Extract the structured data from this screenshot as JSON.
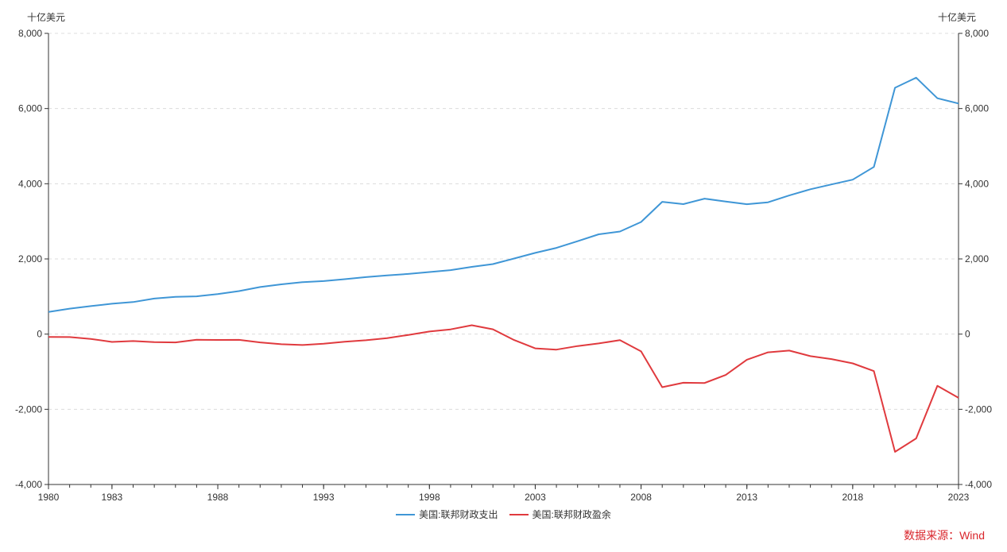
{
  "chart_data": {
    "type": "line",
    "left_axis_unit": "十亿美元",
    "right_axis_unit": "十亿美元",
    "xlim": [
      1980,
      2023
    ],
    "ylim": [
      -4000,
      8000
    ],
    "y_ticks": [
      -4000,
      -2000,
      0,
      2000,
      4000,
      6000,
      8000
    ],
    "y_tick_labels": [
      "-4,000",
      "-2,000",
      "0",
      "2,000",
      "4,000",
      "6,000",
      "8,000"
    ],
    "x_tick_labels": [
      "1980",
      "1983",
      "1988",
      "1993",
      "1998",
      "2003",
      "2008",
      "2013",
      "2018",
      "2023"
    ],
    "x_tick_values": [
      1980,
      1983,
      1988,
      1993,
      1998,
      2003,
      2008,
      2013,
      2018,
      2023
    ],
    "grid": true,
    "legend_position": "bottom-center",
    "x": [
      1980,
      1981,
      1982,
      1983,
      1984,
      1985,
      1986,
      1987,
      1988,
      1989,
      1990,
      1991,
      1992,
      1993,
      1994,
      1995,
      1996,
      1997,
      1998,
      1999,
      2000,
      2001,
      2002,
      2003,
      2004,
      2005,
      2006,
      2007,
      2008,
      2009,
      2010,
      2011,
      2012,
      2013,
      2014,
      2015,
      2016,
      2017,
      2018,
      2019,
      2020,
      2021,
      2022,
      2023
    ],
    "series": [
      {
        "name": "美国:联邦财政支出",
        "color": "#3f96d6",
        "values": [
          591,
          678,
          746,
          808,
          852,
          946,
          990,
          1004,
          1065,
          1144,
          1253,
          1324,
          1382,
          1410,
          1462,
          1516,
          1561,
          1601,
          1652,
          1702,
          1789,
          1863,
          2011,
          2160,
          2293,
          2472,
          2655,
          2729,
          2983,
          3518,
          3457,
          3603,
          3527,
          3455,
          3506,
          3688,
          3853,
          3982,
          4109,
          4447,
          6552,
          6822,
          6273,
          6135
        ]
      },
      {
        "name": "美国:联邦财政盈余",
        "color": "#e03a3e",
        "values": [
          -74,
          -79,
          -128,
          -208,
          -185,
          -212,
          -221,
          -150,
          -155,
          -153,
          -221,
          -269,
          -290,
          -255,
          -203,
          -164,
          -107,
          -22,
          69,
          126,
          236,
          128,
          -158,
          -378,
          -413,
          -318,
          -248,
          -161,
          -459,
          -1413,
          -1294,
          -1300,
          -1087,
          -680,
          -485,
          -439,
          -585,
          -665,
          -779,
          -984,
          -3132,
          -2775,
          -1376,
          -1695
        ]
      }
    ]
  },
  "source_text": "数据来源：Wind"
}
